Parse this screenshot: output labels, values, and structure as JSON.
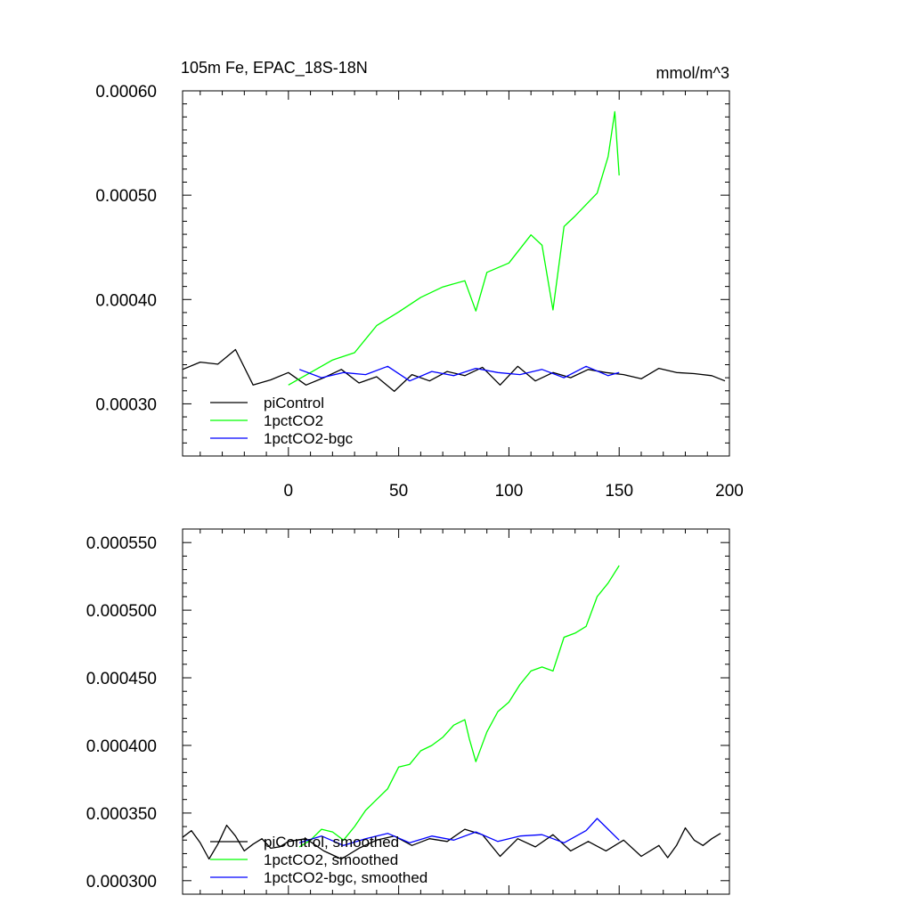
{
  "colors": {
    "piControl": "#000000",
    "1pctCO2": "#00ff00",
    "1pctCO2-bgc": "#0000ff",
    "axis": "#000000",
    "background": "#ffffff"
  },
  "chart_data": [
    {
      "type": "line",
      "title": "105m Fe, EPAC_18S-18N",
      "units_label": "mmol/m^3",
      "xlabel": "",
      "ylabel": "",
      "xlim": [
        -48,
        200
      ],
      "ylim": [
        0.00025,
        0.0006
      ],
      "x_ticks": [
        0,
        50,
        100,
        150,
        200
      ],
      "x_tick_labels": [
        "0",
        "50",
        "100",
        "150",
        "200"
      ],
      "y_ticks": [
        0.0003,
        0.0004,
        0.0005,
        0.0006
      ],
      "y_tick_labels": [
        "0.00030",
        "0.00040",
        "0.00050",
        "0.00060"
      ],
      "legend_position": "bottom-left",
      "legend": [
        "piControl",
        "1pctCO2",
        "1pctCO2-bgc"
      ],
      "series": [
        {
          "name": "piControl",
          "color": "#000000",
          "x": [
            -48,
            -40,
            -32,
            -24,
            -16,
            -8,
            0,
            8,
            16,
            24,
            32,
            40,
            48,
            56,
            64,
            72,
            80,
            88,
            96,
            104,
            112,
            120,
            128,
            136,
            144,
            152,
            160,
            168,
            176,
            184,
            192,
            198
          ],
          "y": [
            0.000333,
            0.00034,
            0.000338,
            0.000352,
            0.000318,
            0.000323,
            0.00033,
            0.000318,
            0.000325,
            0.000333,
            0.00032,
            0.000326,
            0.000312,
            0.000328,
            0.000322,
            0.000331,
            0.000327,
            0.000335,
            0.000318,
            0.000336,
            0.000322,
            0.00033,
            0.000325,
            0.000333,
            0.00033,
            0.000328,
            0.000324,
            0.000334,
            0.00033,
            0.000329,
            0.000327,
            0.000322
          ]
        },
        {
          "name": "1pctCO2",
          "color": "#00ff00",
          "x": [
            0,
            10,
            20,
            30,
            40,
            50,
            60,
            70,
            80,
            85,
            90,
            100,
            110,
            115,
            120,
            125,
            130,
            140,
            145,
            148,
            150
          ],
          "y": [
            0.000318,
            0.00033,
            0.000342,
            0.000349,
            0.000375,
            0.000388,
            0.000402,
            0.000412,
            0.000418,
            0.000389,
            0.000426,
            0.000435,
            0.000462,
            0.000452,
            0.00039,
            0.00047,
            0.00048,
            0.000502,
            0.000537,
            0.00058,
            0.000519
          ]
        },
        {
          "name": "1pctCO2-bgc",
          "color": "#0000ff",
          "x": [
            5,
            15,
            25,
            35,
            45,
            55,
            65,
            75,
            85,
            95,
            105,
            115,
            125,
            135,
            145,
            150
          ],
          "y": [
            0.000333,
            0.000325,
            0.00033,
            0.000328,
            0.000336,
            0.000322,
            0.000331,
            0.000327,
            0.000334,
            0.00033,
            0.000328,
            0.000333,
            0.000325,
            0.000336,
            0.000327,
            0.00033
          ]
        }
      ]
    },
    {
      "type": "line",
      "title": "",
      "xlabel": "",
      "ylabel": "",
      "xlim": [
        -48,
        200
      ],
      "ylim": [
        0.00029,
        0.00056
      ],
      "x_ticks": [
        0,
        50,
        100,
        150,
        200
      ],
      "y_ticks": [
        0.0003,
        0.00035,
        0.0004,
        0.00045,
        0.0005,
        0.00055
      ],
      "y_tick_labels": [
        "0.000300",
        "0.000350",
        "0.000400",
        "0.000450",
        "0.000500",
        "0.000550"
      ],
      "legend_position": "bottom-left",
      "legend": [
        "piControl, smoothed",
        "1pctCO2, smoothed",
        "1pctCO2-bgc, smoothed"
      ],
      "series": [
        {
          "name": "piControl, smoothed",
          "color": "#000000",
          "x": [
            -48,
            -44,
            -40,
            -36,
            -32,
            -28,
            -24,
            -20,
            -16,
            -12,
            -8,
            -4,
            0,
            8,
            16,
            24,
            32,
            40,
            48,
            56,
            64,
            72,
            80,
            88,
            96,
            104,
            112,
            120,
            128,
            136,
            144,
            152,
            160,
            168,
            172,
            176,
            180,
            184,
            188,
            192,
            196
          ],
          "y": [
            0.000332,
            0.000337,
            0.000328,
            0.000316,
            0.000327,
            0.000341,
            0.000333,
            0.000322,
            0.000327,
            0.000331,
            0.000324,
            0.000325,
            0.000329,
            0.000331,
            0.000322,
            0.000316,
            0.000324,
            0.00033,
            0.000333,
            0.000326,
            0.000331,
            0.000329,
            0.000338,
            0.000334,
            0.000318,
            0.000331,
            0.000325,
            0.000334,
            0.000322,
            0.000329,
            0.000322,
            0.00033,
            0.000318,
            0.000326,
            0.000317,
            0.000326,
            0.000339,
            0.00033,
            0.000326,
            0.000331,
            0.000335
          ]
        },
        {
          "name": "1pctCO2, smoothed",
          "color": "#00ff00",
          "x": [
            5,
            10,
            15,
            20,
            25,
            30,
            35,
            40,
            45,
            50,
            55,
            60,
            65,
            70,
            75,
            80,
            82,
            85,
            90,
            95,
            100,
            105,
            110,
            115,
            120,
            125,
            130,
            135,
            140,
            145,
            150
          ],
          "y": [
            0.000325,
            0.00033,
            0.000338,
            0.000336,
            0.00033,
            0.00034,
            0.000352,
            0.00036,
            0.000368,
            0.000384,
            0.000386,
            0.000396,
            0.0004,
            0.000406,
            0.000415,
            0.000419,
            0.000405,
            0.000388,
            0.00041,
            0.000425,
            0.000432,
            0.000445,
            0.000455,
            0.000458,
            0.000455,
            0.00048,
            0.000483,
            0.000488,
            0.00051,
            0.00052,
            0.000533
          ]
        },
        {
          "name": "1pctCO2-bgc, smoothed",
          "color": "#0000ff",
          "x": [
            5,
            15,
            25,
            35,
            45,
            55,
            65,
            75,
            85,
            95,
            105,
            115,
            125,
            135,
            140,
            145,
            150
          ],
          "y": [
            0.000328,
            0.000333,
            0.000326,
            0.000331,
            0.000335,
            0.000328,
            0.000333,
            0.00033,
            0.000336,
            0.000329,
            0.000333,
            0.000334,
            0.000328,
            0.000337,
            0.000346,
            0.000338,
            0.00033
          ]
        }
      ]
    }
  ]
}
